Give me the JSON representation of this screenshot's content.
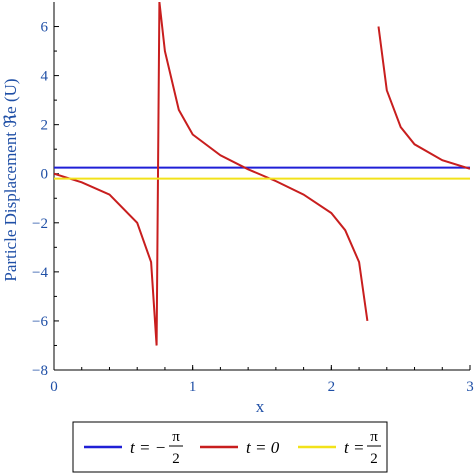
{
  "chart_data": {
    "type": "line",
    "ylabel": "Particle Displacement ℜe (U)",
    "xlabel": "x",
    "xlim": [
      0,
      3
    ],
    "ylim": [
      -8,
      7
    ],
    "x_ticks": [
      "0",
      "1",
      "2",
      "3"
    ],
    "y_ticks": [
      "−8",
      "−6",
      "−4",
      "−2",
      "0",
      "2",
      "4",
      "6"
    ],
    "x_tick_values": [
      0,
      1,
      2,
      3
    ],
    "y_tick_values": [
      -8,
      -6,
      -4,
      -2,
      0,
      2,
      4,
      6
    ],
    "series": [
      {
        "name": "t = −π/2",
        "legend_prefix": "t = −",
        "legend_num": "π",
        "legend_den": "2",
        "color": "#1f1fd6",
        "x": [
          0,
          3
        ],
        "values": [
          0.25,
          0.25
        ]
      },
      {
        "name": "t = 0",
        "legend_prefix": "t = 0",
        "color": "#c81e1e",
        "x": [
          0,
          0.2,
          0.4,
          0.6,
          0.7,
          0.74,
          0.76,
          0.8,
          0.9,
          1.0,
          1.2,
          1.4,
          1.6,
          1.8,
          2.0,
          2.1,
          2.2,
          2.26,
          2.3,
          2.34,
          2.4,
          2.5,
          2.6,
          2.8,
          3.0
        ],
        "values": [
          0.0,
          -0.35,
          -0.85,
          -2.0,
          -3.6,
          -7.0,
          7.0,
          5.0,
          2.6,
          1.6,
          0.75,
          0.18,
          -0.3,
          -0.85,
          -1.6,
          -2.3,
          -3.6,
          -6.0,
          null,
          6.0,
          3.4,
          1.9,
          1.2,
          0.55,
          0.2
        ]
      },
      {
        "name": "t = π/2",
        "legend_prefix": "t =",
        "legend_num": "π",
        "legend_den": "2",
        "color": "#f2e21a",
        "x": [
          0,
          3
        ],
        "values": [
          -0.2,
          -0.2
        ]
      }
    ],
    "legend_position": "bottom",
    "grid": false
  }
}
